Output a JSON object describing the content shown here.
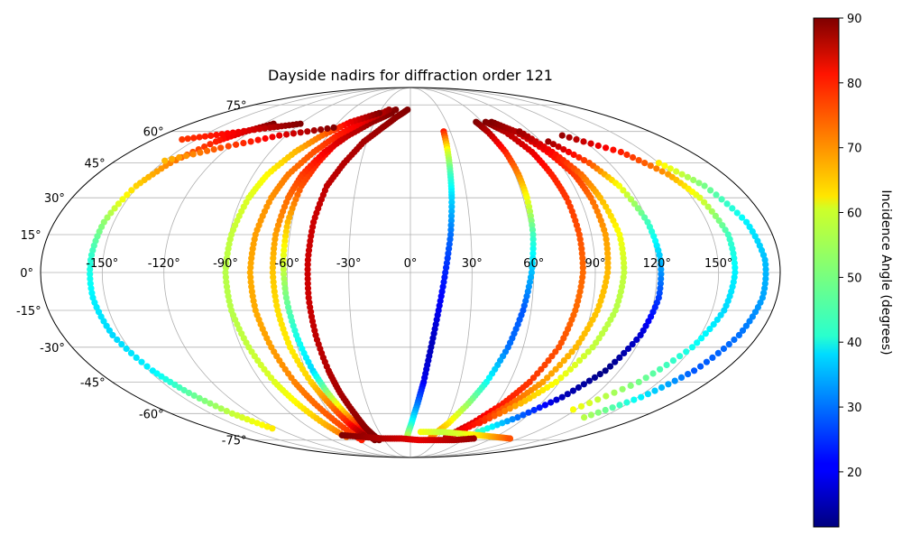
{
  "chart_data": {
    "type": "scatter",
    "projection": "mollweide",
    "title": "Dayside nadirs for diffraction order 121",
    "grid": true,
    "lon_ticks": [
      {
        "value": -150,
        "label": "-150°"
      },
      {
        "value": -120,
        "label": "-120°"
      },
      {
        "value": -90,
        "label": "-90°"
      },
      {
        "value": -60,
        "label": "-60°"
      },
      {
        "value": -30,
        "label": "-30°"
      },
      {
        "value": 0,
        "label": "0°"
      },
      {
        "value": 30,
        "label": "30°"
      },
      {
        "value": 60,
        "label": "60°"
      },
      {
        "value": 90,
        "label": "90°"
      },
      {
        "value": 120,
        "label": "120°"
      },
      {
        "value": 150,
        "label": "150°"
      }
    ],
    "lat_ticks": [
      {
        "value": 75,
        "label": "75°"
      },
      {
        "value": 60,
        "label": "60°"
      },
      {
        "value": 45,
        "label": "45°"
      },
      {
        "value": 30,
        "label": "30°"
      },
      {
        "value": 15,
        "label": "15°"
      },
      {
        "value": 0,
        "label": "0°"
      },
      {
        "value": -15,
        "label": "-15°"
      },
      {
        "value": -30,
        "label": "-30°"
      },
      {
        "value": -45,
        "label": "-45°"
      },
      {
        "value": -60,
        "label": "-60°"
      },
      {
        "value": -75,
        "label": "-75°"
      }
    ],
    "colorbar": {
      "label": "Incidence Angle (degrees)",
      "colormap": "jet",
      "range": [
        11.5,
        90
      ],
      "ticks": [
        {
          "value": 20,
          "label": "20"
        },
        {
          "value": 30,
          "label": "30"
        },
        {
          "value": 40,
          "label": "40"
        },
        {
          "value": 50,
          "label": "50"
        },
        {
          "value": 60,
          "label": "60"
        },
        {
          "value": 70,
          "label": "70"
        },
        {
          "value": 80,
          "label": "80"
        },
        {
          "value": 90,
          "label": "90"
        }
      ]
    },
    "series": [
      {
        "lat": [
          72,
          68,
          62,
          55,
          45,
          35,
          20,
          5,
          -10,
          -25,
          -40,
          -50,
          -60,
          -68,
          -75
        ],
        "lon": [
          -15,
          -28,
          -40,
          -50,
          -56,
          -60,
          -62,
          -62,
          -61,
          -59,
          -56,
          -53,
          -49,
          -45,
          -41
        ],
        "inc": [
          90,
          87,
          84,
          81,
          78,
          74,
          66,
          58,
          50,
          43,
          38,
          52,
          66,
          80,
          90
        ]
      },
      {
        "lat": [
          72,
          68,
          62,
          55,
          45,
          35,
          20,
          5,
          -10,
          -25,
          -40,
          -50,
          -60,
          -68,
          -75
        ],
        "lon": [
          -3,
          -12,
          -22,
          -32,
          -40,
          -46,
          -49,
          -50,
          -50,
          -49,
          -47,
          -45,
          -42,
          -40,
          -36
        ],
        "inc": [
          90,
          89,
          88,
          87,
          86,
          85,
          84,
          84,
          84,
          85,
          86,
          87,
          88,
          89,
          90
        ]
      },
      {
        "lat": [
          70,
          65,
          58,
          50,
          40,
          30,
          15,
          0,
          -15,
          -30,
          -45,
          -55,
          -65,
          -72
        ],
        "lon": [
          -18,
          -32,
          -45,
          -55,
          -62,
          -65,
          -67,
          -67,
          -66,
          -64,
          -60,
          -56,
          -52,
          -48
        ],
        "inc": [
          90,
          88,
          85,
          81,
          76,
          72,
          68,
          65,
          63,
          62,
          64,
          70,
          78,
          88
        ]
      },
      {
        "lat": [
          72,
          65,
          58,
          50,
          40,
          30,
          15,
          0,
          -15,
          -30,
          -45,
          -55,
          -65,
          -75
        ],
        "lon": [
          -22,
          -40,
          -53,
          -62,
          -70,
          -74,
          -77,
          -78,
          -77,
          -74,
          -70,
          -66,
          -61,
          -56
        ],
        "inc": [
          88,
          82,
          78,
          74,
          71,
          69,
          68,
          67,
          67,
          68,
          70,
          72,
          74,
          78
        ]
      },
      {
        "lat": [
          70,
          65,
          58,
          50,
          40,
          30,
          15,
          0,
          -15,
          -30,
          -45,
          -55,
          -65,
          -73
        ],
        "lon": [
          -30,
          -50,
          -64,
          -74,
          -82,
          -86,
          -89,
          -90,
          -89,
          -86,
          -82,
          -78,
          -73,
          -68
        ],
        "inc": [
          90,
          82,
          72,
          66,
          61,
          58,
          56,
          55,
          55,
          56,
          58,
          61,
          66,
          72
        ]
      },
      {
        "lat": [
          64,
          60,
          55,
          45,
          35,
          20,
          5,
          -10,
          -25,
          -40,
          -50,
          -60,
          -68
        ],
        "lon": [
          -112,
          -124,
          -134,
          -145,
          -151,
          -155,
          -156,
          -156,
          -154,
          -148,
          -142,
          -134,
          -125
        ],
        "inc": [
          90,
          84,
          78,
          70,
          64,
          52,
          44,
          40,
          38,
          40,
          48,
          56,
          62
        ]
      },
      {
        "lat": [
          60,
          50,
          40,
          30,
          15,
          0,
          -15,
          -30,
          -45,
          -55,
          -65,
          -72
        ],
        "lon": [
          25,
          24,
          23,
          22,
          20,
          17,
          14,
          11,
          8,
          5,
          1,
          -3
        ],
        "inc": [
          78,
          58,
          46,
          38,
          30,
          24,
          20,
          16,
          20,
          30,
          42,
          54
        ]
      },
      {
        "lat": [
          65,
          60,
          50,
          40,
          30,
          15,
          0,
          -15,
          -30,
          -45,
          -55,
          -65,
          -73
        ],
        "lon": [
          55,
          58,
          61,
          62,
          62,
          61,
          59,
          56,
          52,
          46,
          40,
          32,
          22
        ],
        "inc": [
          90,
          86,
          78,
          70,
          60,
          46,
          36,
          28,
          30,
          42,
          52,
          62,
          70
        ]
      },
      {
        "lat": [
          65,
          60,
          50,
          40,
          30,
          15,
          0,
          -15,
          -30,
          -45,
          -55,
          -65,
          -73
        ],
        "lon": [
          63,
          71,
          78,
          81,
          83,
          84,
          84,
          82,
          79,
          72,
          64,
          52,
          38
        ],
        "inc": [
          90,
          86,
          82,
          78,
          76,
          74,
          72,
          72,
          74,
          76,
          78,
          82,
          86
        ]
      },
      {
        "lat": [
          65,
          60,
          50,
          40,
          30,
          15,
          0,
          -15,
          -30,
          -45,
          -55,
          -65,
          -73
        ],
        "lon": [
          68,
          79,
          88,
          94,
          96,
          97,
          96,
          93,
          88,
          80,
          70,
          56,
          40
        ],
        "inc": [
          90,
          86,
          80,
          76,
          72,
          68,
          66,
          65,
          66,
          68,
          72,
          78,
          84
        ]
      },
      {
        "lat": [
          60,
          50,
          40,
          30,
          15,
          0,
          -15,
          -30,
          -45,
          -55,
          -65
        ],
        "lon": [
          82,
          91,
          98,
          101,
          104,
          104,
          102,
          97,
          88,
          76,
          58
        ],
        "inc": [
          88,
          80,
          72,
          66,
          60,
          56,
          55,
          56,
          60,
          66,
          78
        ]
      },
      {
        "lat": [
          55,
          45,
          35,
          20,
          5,
          -10,
          -25,
          -40,
          -52,
          -62,
          -70
        ],
        "lon": [
          95,
          108,
          115,
          120,
          122,
          122,
          119,
          112,
          100,
          84,
          65
        ],
        "inc": [
          88,
          74,
          60,
          46,
          36,
          26,
          18,
          12,
          16,
          30,
          46
        ]
      },
      {
        "lat": [
          58,
          50,
          40,
          30,
          15,
          0,
          -15,
          -30,
          -45,
          -58
        ],
        "lon": [
          110,
          135,
          148,
          154,
          158,
          158,
          156,
          150,
          138,
          118
        ],
        "inc": [
          88,
          78,
          68,
          58,
          46,
          40,
          38,
          42,
          50,
          60
        ]
      },
      {
        "lat": [
          45,
          35,
          20,
          5,
          -10,
          -25,
          -40,
          -52,
          -62
        ],
        "lon": [
          150,
          162,
          170,
          173,
          173,
          170,
          163,
          152,
          136
        ],
        "inc": [
          62,
          50,
          40,
          36,
          34,
          30,
          28,
          40,
          55
        ]
      },
      {
        "lat": [
          62,
          58,
          52,
          46
        ],
        "lon": [
          -60,
          -95,
          -125,
          -150
        ],
        "inc": [
          90,
          82,
          74,
          66
        ]
      },
      {
        "lat": [
          64,
          62,
          59,
          56
        ],
        "lon": [
          -90,
          -110,
          -135,
          -160
        ],
        "inc": [
          90,
          86,
          80,
          76
        ]
      },
      {
        "lat": [
          -70,
          -70,
          -71,
          -72,
          -73,
          -74
        ],
        "lon": [
          10,
          30,
          50,
          70,
          90,
          110
        ],
        "inc": [
          60,
          56,
          58,
          62,
          68,
          74
        ]
      },
      {
        "lat": [
          -72,
          -73,
          -74,
          -74,
          -75,
          -75,
          -75,
          -74
        ],
        "lon": [
          -70,
          -50,
          -30,
          -10,
          10,
          30,
          50,
          70
        ],
        "inc": [
          90,
          88,
          86,
          84,
          82,
          84,
          86,
          88
        ]
      }
    ]
  }
}
